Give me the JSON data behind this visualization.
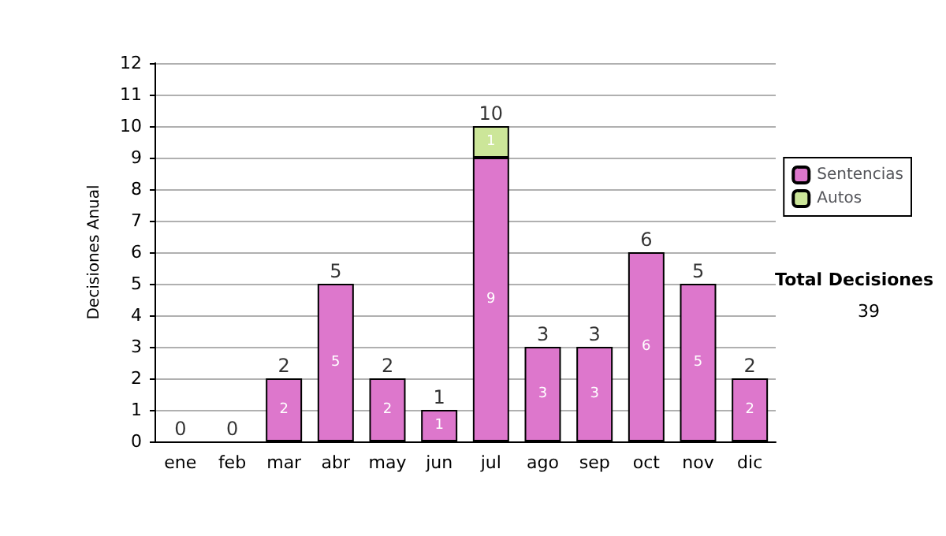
{
  "chart_data": {
    "type": "bar",
    "ylabel": "Decisiones Anual",
    "categories": [
      "ene",
      "feb",
      "mar",
      "abr",
      "may",
      "jun",
      "jul",
      "ago",
      "sep",
      "oct",
      "nov",
      "dic"
    ],
    "series": [
      {
        "name": "Sentencias",
        "color": "#dd77cc",
        "values": [
          0,
          0,
          2,
          5,
          2,
          1,
          9,
          3,
          3,
          6,
          5,
          2
        ],
        "value_labels": [
          null,
          null,
          "2",
          "5",
          "2",
          "1",
          "9",
          "3",
          "3",
          "6",
          "5",
          "2"
        ]
      },
      {
        "name": "Autos",
        "color": "#cce699",
        "values": [
          0,
          0,
          0,
          0,
          0,
          0,
          1,
          0,
          0,
          0,
          0,
          0
        ],
        "value_labels": [
          null,
          null,
          null,
          null,
          null,
          null,
          "1",
          null,
          null,
          null,
          null,
          null
        ]
      }
    ],
    "stacked": true,
    "totals": [
      "0",
      "0",
      "2",
      "5",
      "2",
      "1",
      "10",
      "3",
      "3",
      "6",
      "5",
      "2"
    ],
    "ylim": [
      0,
      12
    ],
    "yticks": [
      0,
      1,
      2,
      3,
      4,
      5,
      6,
      7,
      8,
      9,
      10,
      11,
      12
    ],
    "grid": "y",
    "legend": "right",
    "annotations": [
      "Total Decisiones",
      "39"
    ]
  }
}
